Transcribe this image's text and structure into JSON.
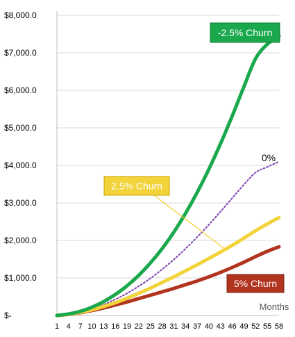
{
  "chart_data": {
    "type": "line",
    "title": "",
    "xlabel": "Months",
    "ylabel": "",
    "x_tick_labels": [
      "1",
      "4",
      "7",
      "10",
      "13",
      "16",
      "19",
      "22",
      "25",
      "28",
      "31",
      "34",
      "37",
      "40",
      "43",
      "46",
      "49",
      "52",
      "55",
      "58"
    ],
    "y_tick_labels": [
      "$-",
      "$1,000.0",
      "$2,000.0",
      "$3,000.0",
      "$4,000.0",
      "$5,000.0",
      "$6,000.0",
      "$7,000.0",
      "$8,000.0"
    ],
    "xlim": [
      1,
      58
    ],
    "ylim": [
      0,
      8000
    ],
    "grid": "horizontal",
    "x": [
      1,
      4,
      7,
      10,
      13,
      16,
      19,
      22,
      25,
      28,
      31,
      34,
      37,
      40,
      43,
      46,
      49,
      52,
      55,
      58
    ],
    "series": [
      {
        "name": "-2.5% Churn",
        "color": "#1aa84d",
        "style": "solid",
        "values": [
          0,
          40,
          110,
          220,
          370,
          560,
          790,
          1070,
          1400,
          1780,
          2220,
          2720,
          3280,
          3900,
          4580,
          5320,
          6100,
          6850,
          7230,
          7450
        ]
      },
      {
        "name": "0%",
        "color": "#7a3fb0",
        "style": "dotted",
        "values": [
          0,
          35,
          95,
          180,
          290,
          430,
          590,
          780,
          990,
          1230,
          1490,
          1780,
          2090,
          2420,
          2770,
          3130,
          3490,
          3810,
          3960,
          4100
        ]
      },
      {
        "name": "2.5% Churn",
        "color": "#f2d33a",
        "style": "solid",
        "values": [
          0,
          30,
          80,
          150,
          240,
          340,
          460,
          590,
          730,
          880,
          1030,
          1190,
          1350,
          1520,
          1690,
          1870,
          2060,
          2260,
          2440,
          2610
        ]
      },
      {
        "name": "5% Churn",
        "color": "#b1341f",
        "style": "solid",
        "values": [
          0,
          28,
          72,
          130,
          200,
          280,
          360,
          450,
          540,
          630,
          720,
          820,
          920,
          1030,
          1150,
          1280,
          1420,
          1570,
          1710,
          1830
        ]
      }
    ],
    "annotations": [
      {
        "text": "-2.5% Churn",
        "series": "-2.5% Churn",
        "box_fill": "#1aa84d",
        "text_color": "#ffffff"
      },
      {
        "text": "0%",
        "series": "0%",
        "box_fill": "",
        "text_color": "#000000"
      },
      {
        "text": "2.5% Churn",
        "series": "2.5% Churn",
        "box_fill": "#f2d33a",
        "text_color": "#ffffff"
      },
      {
        "text": "5% Churn",
        "series": "5% Churn",
        "box_fill": "#b1341f",
        "text_color": "#ffffff"
      }
    ]
  }
}
